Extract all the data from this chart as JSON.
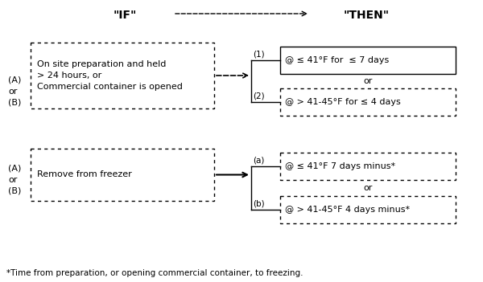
{
  "title_if": "\"IF\"",
  "title_then": "\"THEN\"",
  "bg_color": "#ffffff",
  "box1_text": "On site preparation and held\n> 24 hours, or\nCommercial container is opened",
  "box1_label": "(A)\nor\n(B)",
  "box2_text": "Remove from freezer",
  "box2_label": "(A)\nor\n(B)",
  "then1a_label": "(1)",
  "then1a_text": "@ ≤ 41°F for  ≤ 7 days",
  "then1b_label": "(2)",
  "then1b_text": "@ > 41-45°F for ≤ 4 days",
  "then2a_label": "(a)",
  "then2a_text": "@ ≤ 41°F 7 days minus*",
  "then2b_label": "(b)",
  "then2b_text": "@ > 41-45°F 4 days minus*",
  "or_text": "or",
  "footnote": "*Time from preparation, or opening commercial container, to freezing.",
  "text_color": "#000000"
}
